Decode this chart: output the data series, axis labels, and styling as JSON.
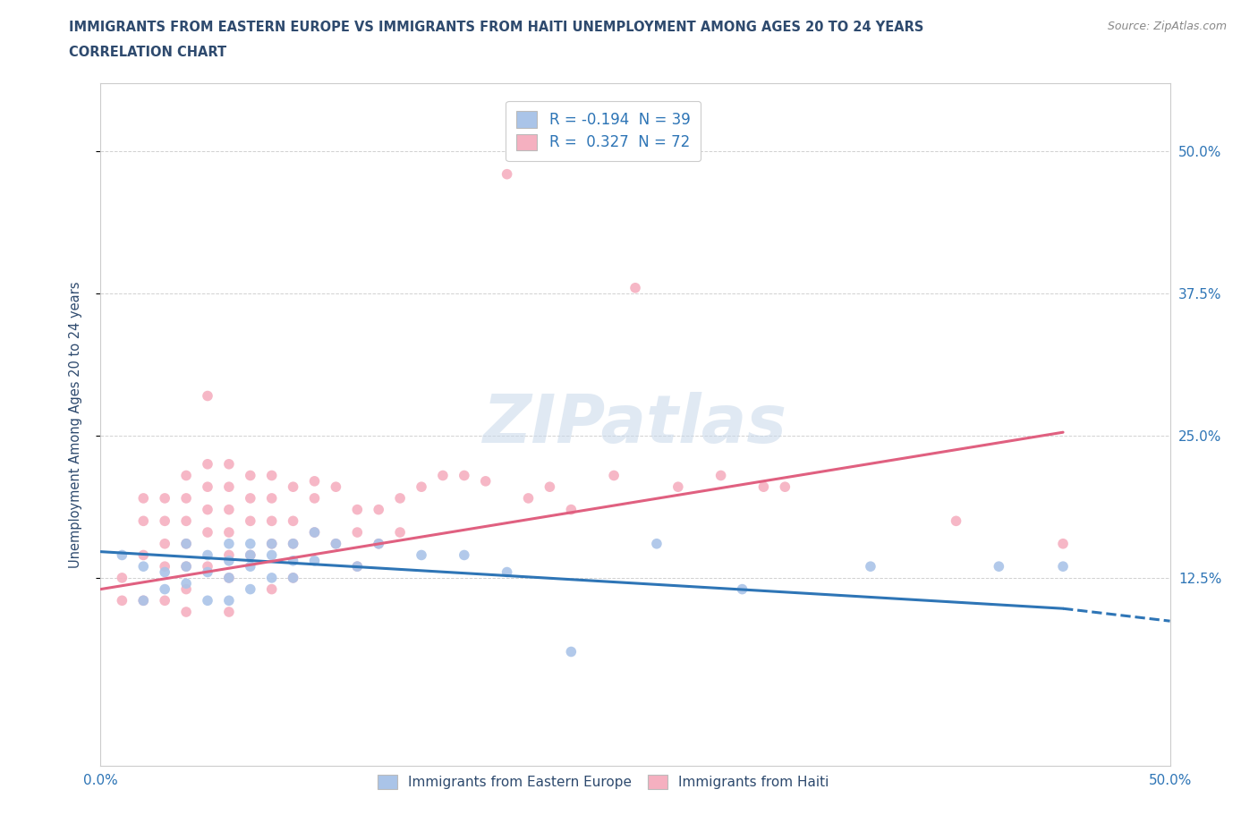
{
  "title_line1": "IMMIGRANTS FROM EASTERN EUROPE VS IMMIGRANTS FROM HAITI UNEMPLOYMENT AMONG AGES 20 TO 24 YEARS",
  "title_line2": "CORRELATION CHART",
  "source": "Source: ZipAtlas.com",
  "ylabel": "Unemployment Among Ages 20 to 24 years",
  "xlim": [
    0.0,
    0.5
  ],
  "ylim": [
    -0.04,
    0.56
  ],
  "ytick_labels": [
    "12.5%",
    "25.0%",
    "37.5%",
    "50.0%"
  ],
  "ytick_values": [
    0.125,
    0.25,
    0.375,
    0.5
  ],
  "legend_entries": [
    {
      "label": "R = -0.194  N = 39",
      "color": "#aac4e8"
    },
    {
      "label": "R =  0.327  N = 72",
      "color": "#f5b0c0"
    }
  ],
  "legend_bottom": [
    "Immigrants from Eastern Europe",
    "Immigrants from Haiti"
  ],
  "watermark": "ZIPatlas",
  "title_color": "#2e4a6e",
  "axis_color": "#2e75b6",
  "dot_color_eastern": "#aac4e8",
  "dot_color_haiti": "#f5b0c0",
  "line_color_eastern": "#2e75b6",
  "line_color_haiti": "#e06080",
  "ee_line_x0": 0.0,
  "ee_line_y0": 0.148,
  "ee_line_x1": 0.45,
  "ee_line_y1": 0.098,
  "ee_line_xdash_end": 0.5,
  "ee_line_ydash_end": 0.087,
  "ht_line_x0": 0.0,
  "ht_line_y0": 0.115,
  "ht_line_x1": 0.45,
  "ht_line_y1": 0.253,
  "eastern_europe_x": [
    0.01,
    0.02,
    0.02,
    0.03,
    0.03,
    0.04,
    0.04,
    0.04,
    0.05,
    0.05,
    0.05,
    0.06,
    0.06,
    0.06,
    0.06,
    0.07,
    0.07,
    0.07,
    0.07,
    0.08,
    0.08,
    0.08,
    0.09,
    0.09,
    0.09,
    0.1,
    0.1,
    0.11,
    0.12,
    0.13,
    0.15,
    0.17,
    0.19,
    0.22,
    0.26,
    0.3,
    0.36,
    0.42,
    0.45
  ],
  "eastern_europe_y": [
    0.145,
    0.135,
    0.105,
    0.13,
    0.115,
    0.155,
    0.135,
    0.12,
    0.145,
    0.13,
    0.105,
    0.155,
    0.14,
    0.125,
    0.105,
    0.155,
    0.145,
    0.135,
    0.115,
    0.155,
    0.145,
    0.125,
    0.155,
    0.14,
    0.125,
    0.165,
    0.14,
    0.155,
    0.135,
    0.155,
    0.145,
    0.145,
    0.13,
    0.06,
    0.155,
    0.115,
    0.135,
    0.135,
    0.135
  ],
  "haiti_x": [
    0.01,
    0.01,
    0.02,
    0.02,
    0.02,
    0.02,
    0.03,
    0.03,
    0.03,
    0.03,
    0.03,
    0.04,
    0.04,
    0.04,
    0.04,
    0.04,
    0.04,
    0.04,
    0.05,
    0.05,
    0.05,
    0.05,
    0.05,
    0.05,
    0.06,
    0.06,
    0.06,
    0.06,
    0.06,
    0.06,
    0.06,
    0.07,
    0.07,
    0.07,
    0.07,
    0.08,
    0.08,
    0.08,
    0.08,
    0.08,
    0.09,
    0.09,
    0.09,
    0.09,
    0.1,
    0.1,
    0.1,
    0.11,
    0.11,
    0.12,
    0.12,
    0.12,
    0.13,
    0.13,
    0.14,
    0.14,
    0.15,
    0.16,
    0.17,
    0.18,
    0.19,
    0.2,
    0.21,
    0.22,
    0.24,
    0.25,
    0.27,
    0.29,
    0.31,
    0.32,
    0.4,
    0.45
  ],
  "haiti_y": [
    0.125,
    0.105,
    0.195,
    0.175,
    0.145,
    0.105,
    0.195,
    0.175,
    0.155,
    0.135,
    0.105,
    0.215,
    0.195,
    0.175,
    0.155,
    0.135,
    0.115,
    0.095,
    0.285,
    0.225,
    0.205,
    0.185,
    0.165,
    0.135,
    0.225,
    0.205,
    0.185,
    0.165,
    0.145,
    0.125,
    0.095,
    0.215,
    0.195,
    0.175,
    0.145,
    0.215,
    0.195,
    0.175,
    0.155,
    0.115,
    0.205,
    0.175,
    0.155,
    0.125,
    0.21,
    0.195,
    0.165,
    0.205,
    0.155,
    0.185,
    0.165,
    0.135,
    0.185,
    0.155,
    0.195,
    0.165,
    0.205,
    0.215,
    0.215,
    0.21,
    0.48,
    0.195,
    0.205,
    0.185,
    0.215,
    0.38,
    0.205,
    0.215,
    0.205,
    0.205,
    0.175,
    0.155
  ]
}
